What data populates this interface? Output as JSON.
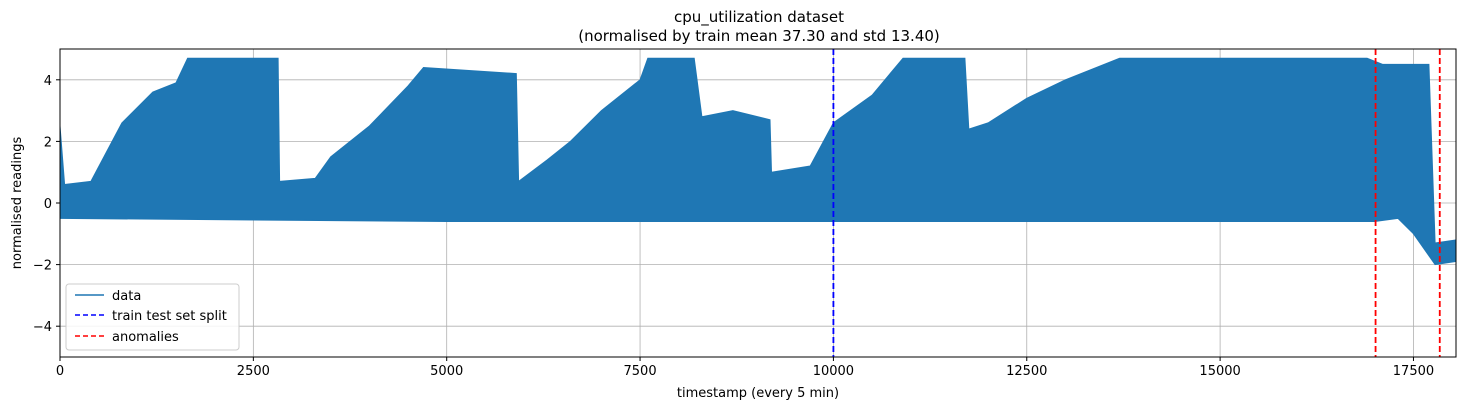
{
  "chart_data": {
    "type": "line",
    "title": "cpu_utilization dataset",
    "subtitle": "(normalised by train mean 37.30 and std 13.40)",
    "xlabel": "timestamp (every 5 min)",
    "ylabel": "normalised readings",
    "xlim": [
      0,
      18050
    ],
    "ylim": [
      -5,
      5
    ],
    "x_ticks": [
      0,
      2500,
      5000,
      7500,
      10000,
      12500,
      15000,
      17500
    ],
    "y_ticks": [
      -4,
      -2,
      0,
      2,
      4
    ],
    "grid": true,
    "legend_position": "lower-left",
    "series": [
      {
        "name": "data",
        "color": "#1f77b4",
        "style": "solid",
        "upper_envelope": [
          [
            0,
            2.5
          ],
          [
            60,
            0.6
          ],
          [
            400,
            0.7
          ],
          [
            800,
            2.6
          ],
          [
            1200,
            3.6
          ],
          [
            1500,
            3.9
          ],
          [
            1650,
            4.7
          ],
          [
            2820,
            4.7
          ],
          [
            2840,
            0.7
          ],
          [
            3300,
            0.8
          ],
          [
            3500,
            1.5
          ],
          [
            4000,
            2.5
          ],
          [
            4500,
            3.8
          ],
          [
            4700,
            4.4
          ],
          [
            5900,
            4.2
          ],
          [
            5930,
            0.7
          ],
          [
            6300,
            1.4
          ],
          [
            6600,
            2.0
          ],
          [
            7000,
            3.0
          ],
          [
            7500,
            4.0
          ],
          [
            7600,
            4.7
          ],
          [
            8200,
            4.7
          ],
          [
            8300,
            2.8
          ],
          [
            8700,
            3.0
          ],
          [
            9180,
            2.7
          ],
          [
            9200,
            1.0
          ],
          [
            9700,
            1.2
          ],
          [
            10000,
            2.6
          ],
          [
            10500,
            3.5
          ],
          [
            10900,
            4.7
          ],
          [
            11700,
            4.7
          ],
          [
            11750,
            2.4
          ],
          [
            12000,
            2.6
          ],
          [
            12500,
            3.4
          ],
          [
            13000,
            4.0
          ],
          [
            13700,
            4.7
          ],
          [
            16900,
            4.7
          ],
          [
            17100,
            4.5
          ],
          [
            17700,
            4.5
          ],
          [
            17780,
            -1.3
          ],
          [
            18050,
            -1.2
          ]
        ],
        "lower_envelope": [
          [
            0,
            -0.5
          ],
          [
            5000,
            -0.6
          ],
          [
            10000,
            -0.6
          ],
          [
            17000,
            -0.6
          ],
          [
            17300,
            -0.5
          ],
          [
            17500,
            -1.0
          ],
          [
            17780,
            -2.0
          ],
          [
            18050,
            -1.9
          ]
        ]
      },
      {
        "name": "train test set split",
        "color": "#0000ff",
        "style": "dashed",
        "x": 10000
      },
      {
        "name": "anomalies",
        "color": "#ff0000",
        "style": "dashed",
        "x": [
          17010,
          17840
        ]
      }
    ]
  }
}
